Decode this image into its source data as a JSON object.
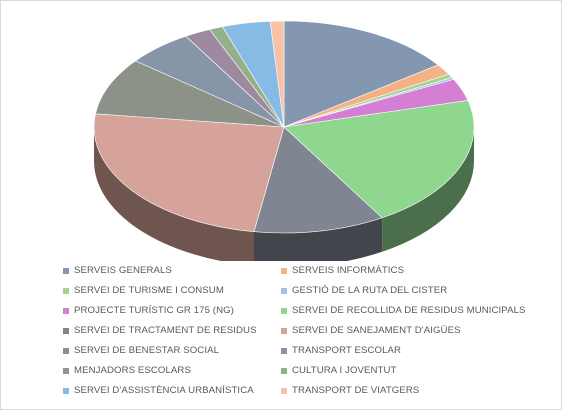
{
  "chart_data": {
    "type": "pie",
    "style": "3d-pie",
    "legend_position": "bottom",
    "title": "",
    "slices": [
      {
        "label": "SERVEIS GENERALS",
        "value": 15.5,
        "color": "#8497b0"
      },
      {
        "label": "SERVEIS INFORMÀTICS",
        "value": 1.7,
        "color": "#f4b183"
      },
      {
        "label": "SERVEI DE TURISME I CONSUM",
        "value": 0.6,
        "color": "#a9d18e"
      },
      {
        "label": "GESTIÓ DE LA RUTA DEL CISTER",
        "value": 0.3,
        "color": "#9dc3e6"
      },
      {
        "label": "PROJECTE TURÍSTIC GR 175 (NG)",
        "value": 3.5,
        "color": "#d47fd4"
      },
      {
        "label": "SERVEI DE RECOLLIDA DE RESIDUS MUNICIPALS",
        "value": 21.0,
        "color": "#8fd68f"
      },
      {
        "label": "SERVEI DE TRACTAMENT DE RESIDUS",
        "value": 11.5,
        "color": "#7f8591"
      },
      {
        "label": "SERVEI DE SANEJAMENT D'AIGÜES",
        "value": 25.2,
        "color": "#d5a39a"
      },
      {
        "label": "SERVEI DE BENESTAR SOCIAL",
        "value": 9.0,
        "color": "#8c9287"
      },
      {
        "label": "TRANSPORT ESCOLAR",
        "value": 5.8,
        "color": "#8696a8"
      },
      {
        "label": "MENJADORS ESCOLARS",
        "value": 2.3,
        "color": "#9e8aa0"
      },
      {
        "label": "CULTURA I JOVENTUT",
        "value": 1.2,
        "color": "#93b08a"
      },
      {
        "label": "SERVEI D'ASSISTÈNCIA URBANÍSTICA",
        "value": 4.2,
        "color": "#86bbe6"
      },
      {
        "label": "TRANSPORT DE VIATGERS",
        "value": 1.2,
        "color": "#f7c2a6"
      }
    ]
  }
}
